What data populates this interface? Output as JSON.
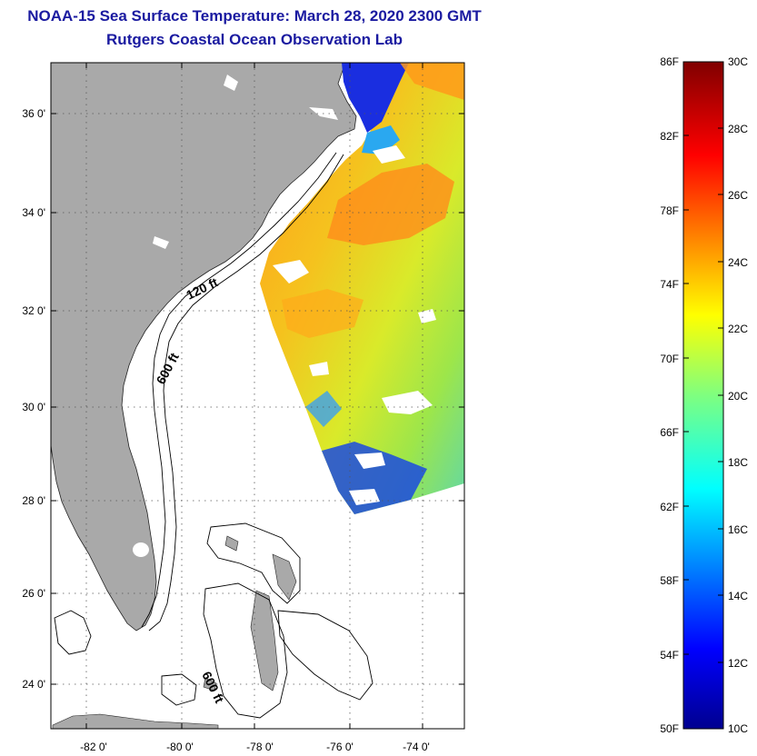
{
  "header": {
    "title": "NOAA-15 Sea Surface Temperature:  March 28, 2020 2300 GMT",
    "subtitle": "Rutgers Coastal Ocean Observation Lab"
  },
  "map": {
    "lat_ticks": [
      "36 0'",
      "34 0'",
      "32 0'",
      "30 0'",
      "28 0'",
      "26 0'",
      "24 0'"
    ],
    "lon_ticks": [
      "-82 0'",
      "-80 0'",
      "-78 0'",
      "-76 0'",
      "-74 0'"
    ],
    "contours": [
      {
        "label": "120 ft"
      },
      {
        "label": "600 ft"
      },
      {
        "label": "600 ft"
      }
    ],
    "colors": {
      "land": "#a9a9a9",
      "ocean": "#ffffff",
      "title": "#1a1aa0"
    }
  },
  "colorbar": {
    "fahrenheit": [
      "86F",
      "82F",
      "78F",
      "74F",
      "70F",
      "66F",
      "62F",
      "58F",
      "54F",
      "50F"
    ],
    "celsius": [
      "30C",
      "28C",
      "26C",
      "24C",
      "22C",
      "20C",
      "18C",
      "16C",
      "14C",
      "12C",
      "10C"
    ]
  }
}
